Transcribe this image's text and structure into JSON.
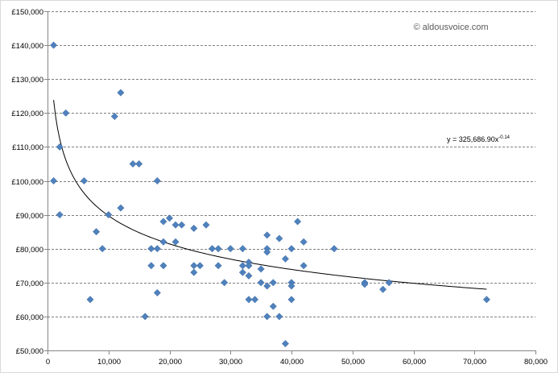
{
  "chart_data": {
    "type": "scatter",
    "title": "",
    "xlabel": "",
    "ylabel": "",
    "xlim": [
      0,
      80000
    ],
    "ylim": [
      50000,
      150000
    ],
    "x_ticks": [
      0,
      10000,
      20000,
      30000,
      40000,
      50000,
      60000,
      70000,
      80000
    ],
    "y_ticks": [
      50000,
      60000,
      70000,
      80000,
      90000,
      100000,
      110000,
      120000,
      130000,
      140000,
      150000
    ],
    "x_tick_labels": [
      "0",
      "10,000",
      "20,000",
      "30,000",
      "40,000",
      "50,000",
      "60,000",
      "70,000",
      "80,000"
    ],
    "y_tick_labels": [
      "£50,000",
      "£60,000",
      "£70,000",
      "£80,000",
      "£90,000",
      "£100,000",
      "£110,000",
      "£120,000",
      "£130,000",
      "£140,000",
      "£150,000"
    ],
    "grid": {
      "horizontal": true,
      "style": "dashed"
    },
    "marker": {
      "shape": "diamond",
      "color": "#4f81bd"
    },
    "points": [
      [
        1000,
        140000
      ],
      [
        1000,
        100000
      ],
      [
        2000,
        110000
      ],
      [
        2000,
        90000
      ],
      [
        3000,
        120000
      ],
      [
        6000,
        100000
      ],
      [
        7000,
        65000
      ],
      [
        8000,
        85000
      ],
      [
        9000,
        80000
      ],
      [
        10000,
        90000
      ],
      [
        11000,
        119000
      ],
      [
        12000,
        126000
      ],
      [
        12000,
        92000
      ],
      [
        14000,
        105000
      ],
      [
        15000,
        105000
      ],
      [
        16000,
        60000
      ],
      [
        17000,
        80000
      ],
      [
        17000,
        75000
      ],
      [
        18000,
        100000
      ],
      [
        18000,
        80000
      ],
      [
        18000,
        67000
      ],
      [
        19000,
        88000
      ],
      [
        19000,
        82000
      ],
      [
        19000,
        75000
      ],
      [
        20000,
        89000
      ],
      [
        21000,
        87000
      ],
      [
        21000,
        82000
      ],
      [
        22000,
        87000
      ],
      [
        24000,
        86000
      ],
      [
        24000,
        75000
      ],
      [
        24000,
        73000
      ],
      [
        25000,
        75000
      ],
      [
        26000,
        87000
      ],
      [
        27000,
        80000
      ],
      [
        28000,
        80000
      ],
      [
        28000,
        75000
      ],
      [
        29000,
        70000
      ],
      [
        30000,
        80000
      ],
      [
        32000,
        80000
      ],
      [
        32000,
        75000
      ],
      [
        32000,
        73000
      ],
      [
        33000,
        76000
      ],
      [
        33000,
        75000
      ],
      [
        33000,
        72000
      ],
      [
        33000,
        65000
      ],
      [
        34000,
        65000
      ],
      [
        35000,
        74000
      ],
      [
        35000,
        70000
      ],
      [
        36000,
        84000
      ],
      [
        36000,
        80000
      ],
      [
        36000,
        79000
      ],
      [
        36000,
        69000
      ],
      [
        36000,
        60000
      ],
      [
        37000,
        70000
      ],
      [
        37000,
        63000
      ],
      [
        38000,
        83000
      ],
      [
        38000,
        60000
      ],
      [
        39000,
        77000
      ],
      [
        39000,
        52000
      ],
      [
        40000,
        80000
      ],
      [
        40000,
        70000
      ],
      [
        40000,
        69000
      ],
      [
        40000,
        65000
      ],
      [
        41000,
        88000
      ],
      [
        42000,
        82000
      ],
      [
        42000,
        75000
      ],
      [
        47000,
        80000
      ],
      [
        52000,
        70000
      ],
      [
        52000,
        69500
      ],
      [
        55000,
        68000
      ],
      [
        56000,
        70000
      ],
      [
        72000,
        65000
      ]
    ],
    "trendline": {
      "type": "power",
      "coefficient": 325686.9,
      "exponent": -0.14,
      "x_range": [
        1000,
        72000
      ],
      "label": "y = 325,686.90x",
      "label_exponent": "-0.14"
    },
    "annotations": [
      {
        "text": "© aldousvoice.com"
      }
    ]
  }
}
